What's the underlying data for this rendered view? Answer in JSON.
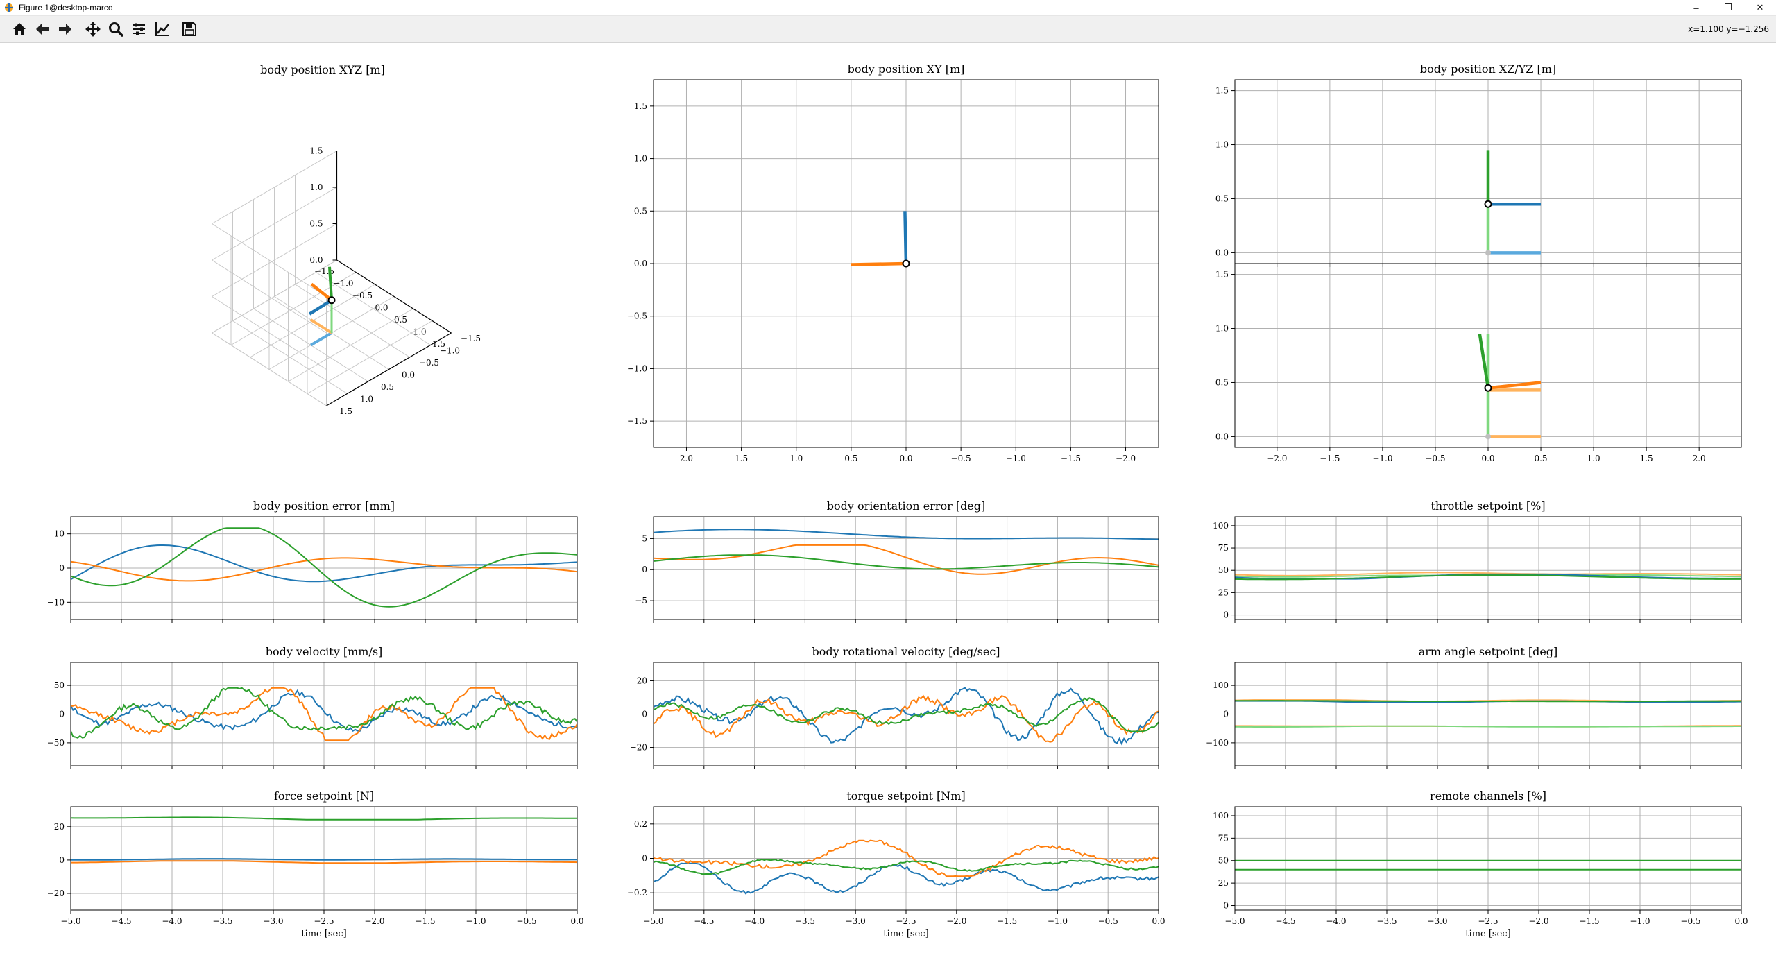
{
  "window": {
    "title": "Figure 1@desktop-marco",
    "controls": [
      "minimize",
      "restore",
      "close"
    ]
  },
  "toolbar": {
    "buttons": [
      {
        "name": "home",
        "icon": "home-icon"
      },
      {
        "name": "back",
        "icon": "arrow-left-icon"
      },
      {
        "name": "forward",
        "icon": "arrow-right-icon"
      },
      {
        "name": "pan",
        "icon": "move-icon"
      },
      {
        "name": "zoom",
        "icon": "zoom-icon"
      },
      {
        "name": "subplots",
        "icon": "sliders-icon"
      },
      {
        "name": "axes",
        "icon": "chart-line-icon"
      },
      {
        "name": "save",
        "icon": "save-icon"
      }
    ],
    "coords": "x=1.100 y=−1.256"
  },
  "colors": {
    "blue": "#1f77b4",
    "orange": "#ff7f0e",
    "green": "#2ca02c",
    "light_blue": "#5aa9dd",
    "light_orange": "#ffb35c",
    "light_green": "#7fd87f",
    "grid": "#b0b0b0"
  },
  "chart_data": [
    {
      "id": "xyz3d",
      "type": "scatter",
      "title": "body position XYZ [m]",
      "z_ticks": [
        "0.0",
        "0.5",
        "1.0",
        "1.5"
      ],
      "x_ticks": [
        "1.5",
        "1.0",
        "0.5",
        "0.0",
        "−0.5",
        "−1.0",
        "−1.5"
      ],
      "y_ticks": [
        "−1.5",
        "−1.0",
        "−0.5",
        "0.0",
        "0.5",
        "1.0",
        "1.5"
      ],
      "body_position": [
        0,
        0,
        0.45
      ]
    },
    {
      "id": "xy",
      "type": "scatter",
      "title": "body position XY [m]",
      "xlim": [
        2.3,
        -2.3
      ],
      "ylim": [
        -1.75,
        1.75
      ],
      "x_ticks": [
        "2.0",
        "1.5",
        "1.0",
        "0.5",
        "0.0",
        "−0.5",
        "−1.0",
        "−1.5",
        "−2.0"
      ],
      "y_ticks": [
        "−1.5",
        "−1.0",
        "−0.5",
        "0.0",
        "0.5",
        "1.0",
        "1.5"
      ],
      "segments": [
        {
          "color": "orange",
          "x": [
            0.0,
            0.5
          ],
          "y": [
            0.0,
            -0.01
          ]
        },
        {
          "color": "blue",
          "x": [
            0.0,
            0.01
          ],
          "y": [
            0.0,
            0.5
          ]
        }
      ],
      "marker": [
        0,
        0
      ]
    },
    {
      "id": "xz",
      "type": "scatter",
      "title": "body position XZ/YZ [m]",
      "xlim": [
        -2.4,
        2.4
      ],
      "ylim": [
        -0.1,
        1.6
      ],
      "y_ticks": [
        "0.0",
        "0.5",
        "1.0",
        "1.5"
      ],
      "segments": [
        {
          "color": "light_green",
          "x": [
            0,
            0
          ],
          "y": [
            0,
            0.45
          ]
        },
        {
          "color": "light_blue",
          "x": [
            0,
            0.5
          ],
          "y": [
            0,
            0
          ]
        },
        {
          "color": "green",
          "x": [
            0,
            0
          ],
          "y": [
            0.45,
            0.95
          ]
        },
        {
          "color": "blue",
          "x": [
            0,
            0.5
          ],
          "y": [
            0.45,
            0.45
          ]
        }
      ],
      "marker": [
        0,
        0.45
      ]
    },
    {
      "id": "yz",
      "type": "scatter",
      "xlim": [
        -2.4,
        2.4
      ],
      "ylim": [
        -0.1,
        1.6
      ],
      "x_ticks": [
        "−2.0",
        "−1.5",
        "−1.0",
        "−0.5",
        "0.0",
        "0.5",
        "1.0",
        "1.5",
        "2.0"
      ],
      "y_ticks": [
        "0.0",
        "0.5",
        "1.0",
        "1.5"
      ],
      "segments": [
        {
          "color": "light_green",
          "x": [
            0,
            0
          ],
          "y": [
            0,
            0.45
          ]
        },
        {
          "color": "light_orange",
          "x": [
            0,
            0.5
          ],
          "y": [
            0,
            0
          ]
        },
        {
          "color": "light_green",
          "x": [
            0,
            0
          ],
          "y": [
            0.45,
            0.95
          ]
        },
        {
          "color": "light_orange",
          "x": [
            0,
            0.5
          ],
          "y": [
            0.43,
            0.43
          ]
        },
        {
          "color": "green",
          "x": [
            0,
            -0.08
          ],
          "y": [
            0.45,
            0.95
          ]
        },
        {
          "color": "orange",
          "x": [
            0,
            0.5
          ],
          "y": [
            0.45,
            0.5
          ]
        }
      ],
      "marker": [
        0,
        0.45
      ]
    },
    {
      "id": "pos_err",
      "type": "line",
      "title": "body position error [mm]",
      "xlim": [
        -5,
        0
      ],
      "ylim": [
        -15,
        15
      ],
      "y_ticks": [
        -10,
        0,
        10
      ],
      "series": [
        {
          "color": "blue",
          "base": 0,
          "amp": 9,
          "seed": 1,
          "smooth": 1
        },
        {
          "color": "orange",
          "base": 0,
          "amp": 9,
          "seed": 2,
          "smooth": 1
        },
        {
          "color": "green",
          "base": 0,
          "amp": 9,
          "seed": 3,
          "smooth": 1
        }
      ]
    },
    {
      "id": "ori_err",
      "type": "line",
      "title": "body orientation error [deg]",
      "xlim": [
        -5,
        0
      ],
      "ylim": [
        -8,
        8.5
      ],
      "y_ticks": [
        -5,
        0,
        5
      ],
      "series": [
        {
          "color": "blue",
          "base": 5.3,
          "amp": 1.4,
          "seed": 4,
          "smooth": 1
        },
        {
          "color": "orange",
          "base": 1.6,
          "amp": 1.8,
          "seed": 5,
          "smooth": 1
        },
        {
          "color": "green",
          "base": 0.9,
          "amp": 1.1,
          "seed": 6,
          "smooth": 1
        }
      ]
    },
    {
      "id": "throttle",
      "type": "line",
      "title": "throttle setpoint [%]",
      "xlim": [
        -5,
        0
      ],
      "ylim": [
        -5,
        110
      ],
      "y_ticks": [
        0,
        25,
        50,
        75,
        100
      ],
      "series": [
        {
          "color": "light_orange",
          "base": 46,
          "amp": 1.5,
          "seed": 7,
          "smooth": 1
        },
        {
          "color": "light_green",
          "base": 44,
          "amp": 1.5,
          "seed": 8,
          "smooth": 1
        },
        {
          "color": "blue",
          "base": 43,
          "amp": 2,
          "seed": 9,
          "smooth": 1
        },
        {
          "color": "green",
          "base": 42,
          "amp": 2,
          "seed": 10,
          "smooth": 1
        }
      ]
    },
    {
      "id": "vel",
      "type": "line",
      "title": "body velocity [mm/s]",
      "xlim": [
        -5,
        0
      ],
      "ylim": [
        -90,
        90
      ],
      "y_ticks": [
        -50,
        0,
        50
      ],
      "series": [
        {
          "color": "blue",
          "base": 0,
          "amp": 35,
          "seed": 11,
          "smooth": 0
        },
        {
          "color": "orange",
          "base": 0,
          "amp": 35,
          "seed": 12,
          "smooth": 0
        },
        {
          "color": "green",
          "base": 0,
          "amp": 35,
          "seed": 13,
          "smooth": 0
        }
      ]
    },
    {
      "id": "rotvel",
      "type": "line",
      "title": "body rotational velocity [deg/sec]",
      "xlim": [
        -5,
        0
      ],
      "ylim": [
        -31,
        31
      ],
      "y_ticks": [
        -20,
        0,
        20
      ],
      "series": [
        {
          "color": "blue",
          "base": 0,
          "amp": 14,
          "seed": 14,
          "smooth": 0
        },
        {
          "color": "orange",
          "base": 0,
          "amp": 14,
          "seed": 15,
          "smooth": 0
        },
        {
          "color": "green",
          "base": 0,
          "amp": 8,
          "seed": 16,
          "smooth": 0
        }
      ]
    },
    {
      "id": "arm",
      "type": "line",
      "title": "arm angle setpoint [deg]",
      "xlim": [
        -5,
        0
      ],
      "ylim": [
        -180,
        180
      ],
      "y_ticks": [
        -100,
        0,
        100
      ],
      "series": [
        {
          "color": "light_orange",
          "base": 47,
          "amp": 2,
          "seed": 17,
          "smooth": 1
        },
        {
          "color": "blue",
          "base": 43,
          "amp": 2,
          "seed": 18,
          "smooth": 1
        },
        {
          "color": "green",
          "base": 45,
          "amp": 2,
          "seed": 19,
          "smooth": 1
        },
        {
          "color": "light_orange",
          "base": -42,
          "amp": 2,
          "seed": 20,
          "smooth": 1
        },
        {
          "color": "light_green",
          "base": -43,
          "amp": 1.5,
          "seed": 21,
          "smooth": 1
        }
      ]
    },
    {
      "id": "force",
      "type": "line",
      "title": "force setpoint [N]",
      "xlim": [
        -5,
        0
      ],
      "ylim": [
        -30,
        32
      ],
      "y_ticks": [
        -20,
        0,
        20
      ],
      "x_ticks": [
        "−5.0",
        "−4.5",
        "−4.0",
        "−3.5",
        "−3.0",
        "−2.5",
        "−2.0",
        "−1.5",
        "−1.0",
        "−0.5",
        "0.0"
      ],
      "xlabel": "time [sec]",
      "series": [
        {
          "color": "green",
          "base": 25,
          "amp": 0.6,
          "seed": 22,
          "smooth": 1
        },
        {
          "color": "blue",
          "base": 0.4,
          "amp": 0.5,
          "seed": 23,
          "smooth": 1
        },
        {
          "color": "orange",
          "base": -1.2,
          "amp": 0.5,
          "seed": 24,
          "smooth": 1
        }
      ]
    },
    {
      "id": "torque",
      "type": "line",
      "title": "torque setpoint [Nm]",
      "xlim": [
        -5,
        0
      ],
      "ylim": [
        -0.3,
        0.3
      ],
      "y_ticks": [
        -0.2,
        0.0,
        0.2
      ],
      "x_ticks": [
        "−5.0",
        "−4.5",
        "−4.0",
        "−3.5",
        "−3.0",
        "−2.5",
        "−2.0",
        "−1.5",
        "−1.0",
        "−0.5",
        "0.0"
      ],
      "xlabel": "time [sec]",
      "series": [
        {
          "color": "blue",
          "base": -0.12,
          "amp": 0.07,
          "seed": 25,
          "smooth": 0
        },
        {
          "color": "orange",
          "base": 0.0,
          "amp": 0.08,
          "seed": 26,
          "smooth": 0
        },
        {
          "color": "green",
          "base": -0.04,
          "amp": 0.04,
          "seed": 27,
          "smooth": 0
        }
      ]
    },
    {
      "id": "remote",
      "type": "line",
      "title": "remote channels [%]",
      "xlim": [
        -5,
        0
      ],
      "ylim": [
        -5,
        110
      ],
      "y_ticks": [
        0,
        25,
        50,
        75,
        100
      ],
      "x_ticks": [
        "−5.0",
        "−4.5",
        "−4.0",
        "−3.5",
        "−3.0",
        "−2.5",
        "−2.0",
        "−1.5",
        "−1.0",
        "−0.5",
        "0.0"
      ],
      "xlabel": "time [sec]",
      "series": [
        {
          "color": "green",
          "base": 50,
          "amp": 0,
          "seed": 28,
          "smooth": 1
        },
        {
          "color": "green",
          "base": 40,
          "amp": 0,
          "seed": 29,
          "smooth": 1
        }
      ]
    }
  ]
}
